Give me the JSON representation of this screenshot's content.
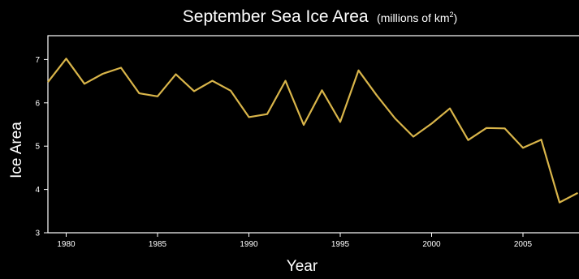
{
  "chart_data": {
    "type": "line",
    "title": "September Sea Ice Area",
    "title_unit": "(millions of km",
    "title_unit_sup": "2",
    "title_unit_close": ")",
    "xlabel": "Year",
    "ylabel": "Ice Area",
    "xlim": [
      1979,
      2008
    ],
    "ylim": [
      3,
      7.5
    ],
    "xticks": [
      1980,
      1985,
      1990,
      1995,
      2000,
      2005
    ],
    "yticks": [
      3,
      4,
      5,
      6,
      7
    ],
    "line_color": "#d9b54a",
    "background": "#000000",
    "x": [
      1979,
      1980,
      1981,
      1982,
      1983,
      1984,
      1985,
      1986,
      1987,
      1988,
      1989,
      1990,
      1991,
      1992,
      1993,
      1994,
      1995,
      1996,
      1997,
      1998,
      1999,
      2000,
      2001,
      2002,
      2003,
      2004,
      2005,
      2006,
      2007,
      2008
    ],
    "values": [
      6.48,
      7.02,
      6.44,
      6.67,
      6.81,
      6.22,
      6.15,
      6.66,
      6.27,
      6.51,
      6.28,
      5.67,
      5.74,
      6.51,
      5.49,
      6.29,
      5.56,
      6.75,
      6.17,
      5.64,
      5.22,
      5.52,
      5.87,
      5.14,
      5.42,
      5.41,
      4.96,
      5.15,
      3.7,
      3.92
    ]
  }
}
